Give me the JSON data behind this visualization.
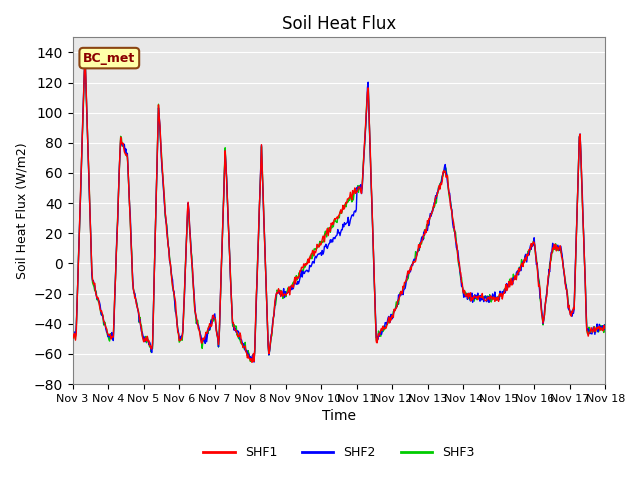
{
  "title": "Soil Heat Flux",
  "xlabel": "Time",
  "ylabel": "Soil Heat Flux (W/m2)",
  "ylim": [
    -80,
    150
  ],
  "yticks": [
    -80,
    -60,
    -40,
    -20,
    0,
    20,
    40,
    60,
    80,
    100,
    120,
    140
  ],
  "x_labels": [
    "Nov 3",
    "Nov 4",
    "Nov 5",
    "Nov 6",
    "Nov 7",
    "Nov 8",
    "Nov 9",
    "Nov 10",
    "Nov 11",
    "Nov 12",
    "Nov 13",
    "Nov 14",
    "Nov 15",
    "Nov 16",
    "Nov 17",
    "Nov 18"
  ],
  "x_tick_pos": [
    0,
    1,
    2,
    3,
    4,
    5,
    6,
    7,
    8,
    9,
    10,
    11,
    12,
    13,
    14,
    15
  ],
  "colors": {
    "SHF1": "#ff0000",
    "SHF2": "#0000ff",
    "SHF3": "#00cc00"
  },
  "annotation_text": "BC_met",
  "annotation_bbox_face": "#ffffaa",
  "annotation_bbox_edge": "#8b4513",
  "bg_color": "#e8e8e8",
  "legend_entries": [
    "SHF1",
    "SHF2",
    "SHF3"
  ]
}
